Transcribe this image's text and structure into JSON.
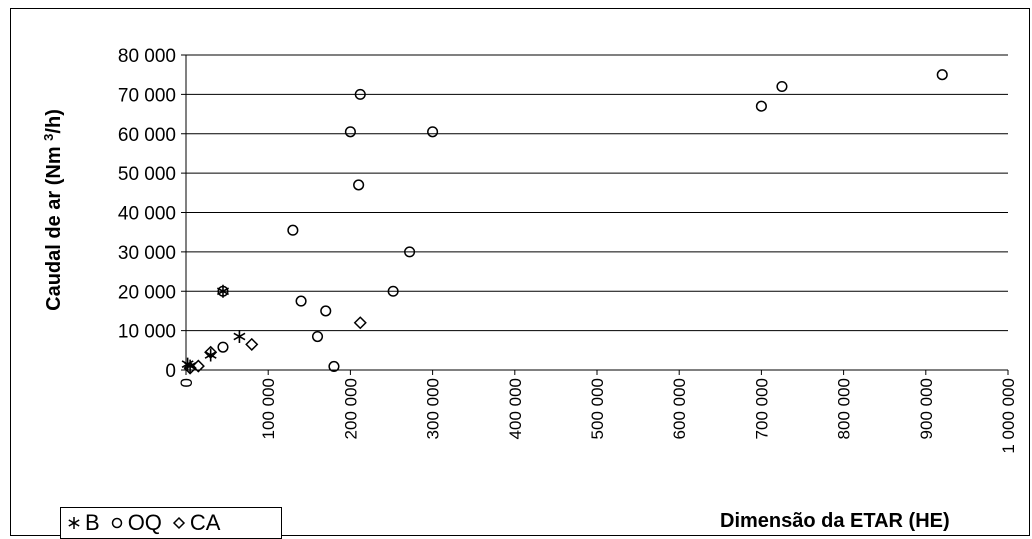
{
  "chart_data": {
    "type": "scatter",
    "xlabel": "Dimensão da ETAR (HE)",
    "ylabel": "Caudal de ar (Nm 3/h)",
    "ylabel_main": "Caudal de ar (Nm ",
    "ylabel_sup": "3",
    "ylabel_tail": "/h)",
    "xlim": [
      0,
      1000000
    ],
    "ylim": [
      0,
      80000
    ],
    "x_ticks": [
      "0",
      "100 000",
      "200 000",
      "300 000",
      "400 000",
      "500 000",
      "600 000",
      "700 000",
      "800 000",
      "900 000",
      "1 000 000"
    ],
    "y_ticks": [
      "0",
      "10 000",
      "20 000",
      "30 000",
      "40 000",
      "50 000",
      "60 000",
      "70 000",
      "80 000"
    ],
    "grid": "horizontal",
    "legend_position": "bottom-left",
    "series": [
      {
        "name": "B",
        "marker": "asterisk",
        "points": [
          [
            2000,
            1500
          ],
          [
            5000,
            1000
          ],
          [
            30000,
            3800
          ],
          [
            45000,
            20000
          ],
          [
            65000,
            8500
          ]
        ]
      },
      {
        "name": "OQ",
        "marker": "circle",
        "points": [
          [
            45000,
            5800
          ],
          [
            45000,
            20000
          ],
          [
            130000,
            35500
          ],
          [
            140000,
            17500
          ],
          [
            160000,
            8500
          ],
          [
            170000,
            15000
          ],
          [
            180000,
            900
          ],
          [
            200000,
            60500
          ],
          [
            210000,
            47000
          ],
          [
            212000,
            70000
          ],
          [
            252000,
            20000
          ],
          [
            272000,
            30000
          ],
          [
            300000,
            60500
          ],
          [
            700000,
            67000
          ],
          [
            725000,
            72000
          ],
          [
            920000,
            75000
          ]
        ]
      },
      {
        "name": "CA",
        "marker": "diamond",
        "points": [
          [
            5000,
            500
          ],
          [
            15000,
            1000
          ],
          [
            30000,
            4500
          ],
          [
            80000,
            6500
          ],
          [
            212000,
            12000
          ]
        ]
      }
    ]
  }
}
